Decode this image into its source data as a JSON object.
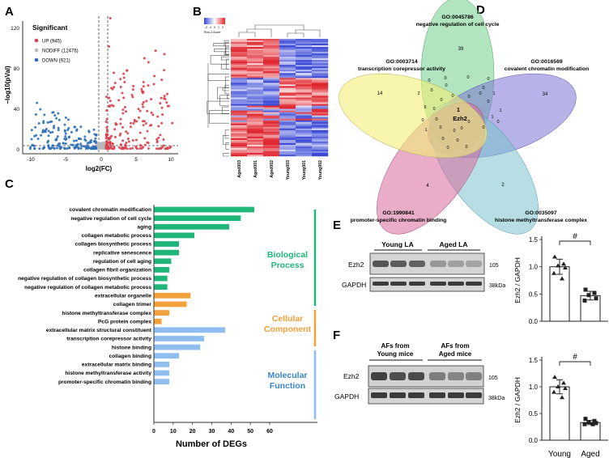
{
  "panel_labels": {
    "a": "A",
    "b": "B",
    "c": "C",
    "d": "D",
    "e": "E",
    "f": "F"
  },
  "colors": {
    "up": "#d9404f",
    "nodiff": "#b8b8b8",
    "down": "#2e6fb7",
    "bio": "#1fb67a",
    "cell": "#f3a13a",
    "mol": "#8fbdf0",
    "venn1": "#f2ee78",
    "venn2": "#6fcf8a",
    "venn3": "#7b74d6",
    "venn4": "#d9699c",
    "venn5": "#7cc3cf"
  },
  "volcano": {
    "legend_title": "Significant",
    "legend": [
      "UP (945)",
      "NODIFF (12476)",
      "DOWN (921)"
    ],
    "xlabel": "log2(FC)",
    "ylabel": "−log10(pVal)",
    "x_ticks": [
      "-10",
      "-5",
      "0",
      "5",
      "10"
    ],
    "y_ticks": [
      "0",
      "40",
      "80",
      "120"
    ]
  },
  "heatmap": {
    "scale_label": "Row Z-Score",
    "scale_ticks": [
      "-2",
      "-1",
      "0",
      "1",
      "2"
    ],
    "columns": [
      "Aged003",
      "Aged001",
      "Aged002",
      "Young003",
      "Young001",
      "Young002"
    ]
  },
  "chart_data": {
    "type": "bar",
    "orientation": "horizontal",
    "xlabel": "Number of DEGs",
    "xlim": [
      0,
      60
    ],
    "x_ticks": [
      "0",
      "10",
      "20",
      "30",
      "40",
      "50",
      "60"
    ],
    "groups": [
      {
        "name_line1": "Biological",
        "name_line2": "Process",
        "color": "#1fb67a",
        "categories": [
          "covalent chromatin modification",
          "negative regulation of cell cycle",
          "aging",
          "collagen metabolic process",
          "collagen biosynthetic process",
          "replicative senescence",
          "regulation of cell aging",
          "collagen fibril organization",
          "negative regulation of collagen biosynthetic process",
          "negative regulation of collagen metabolic process"
        ],
        "values": [
          52,
          45,
          39,
          21,
          13,
          13,
          9,
          8,
          7,
          7
        ]
      },
      {
        "name_line1": "Cellular",
        "name_line2": "Component",
        "color": "#f3a13a",
        "categories": [
          "extracellular organelle",
          "collagen trimer",
          "histone methyltransferase complex",
          "PcG protein complex"
        ],
        "values": [
          19,
          17,
          8,
          4
        ]
      },
      {
        "name_line1": "Molecular",
        "name_line2": "Function",
        "color": "#8fbdf0",
        "categories": [
          "extracellular matrix structural constituent",
          "transcription corepressor activity",
          "histone binding",
          "collagen binding",
          "extracellular matrix binding",
          "histone methyltransferase activity",
          "promoter-specific chromatin binding"
        ],
        "values": [
          37,
          26,
          24,
          13,
          8,
          8,
          8
        ]
      }
    ]
  },
  "venn": {
    "sets": [
      {
        "id": "GO:0045786",
        "name": "negative regulation of cell cycle"
      },
      {
        "id": "GO:0016569",
        "name": "covalent chromatin modification"
      },
      {
        "id": "GO:0035097",
        "name": "histone methyltransferase complex"
      },
      {
        "id": "GO:1990841",
        "name": "promoter-specific chromatin binding"
      },
      {
        "id": "GO:0003714",
        "name": "transcription corepressor activity"
      }
    ],
    "unique_counts": [
      "39",
      "34",
      "2",
      "4",
      "14"
    ],
    "center_count": "1",
    "center_gene": "Ezh2",
    "small_counts": [
      "0",
      "0",
      "0",
      "0",
      "0",
      "0",
      "1",
      "0",
      "2",
      "0",
      "0",
      "0",
      "0",
      "0",
      "1",
      "0",
      "1",
      "0",
      "0",
      "0",
      "1",
      "0",
      "0",
      "0",
      "0",
      "6",
      "0",
      "0",
      "0",
      "0",
      "0"
    ]
  },
  "blot_e": {
    "group1": "Young LA",
    "group2": "Aged LA",
    "band1": "Ezh2",
    "band2": "GAPDH",
    "mw1": "105",
    "mw2": "38kDa",
    "ylabel": "Ezh2 / GAPDH",
    "y_ticks": [
      "0.0",
      "0.5",
      "1.0",
      "1.5"
    ],
    "sig": "#",
    "bars": [
      1.0,
      0.47
    ],
    "points": [
      [
        1.18,
        1.05,
        1.02,
        0.98,
        0.88,
        0.78
      ],
      [
        0.58,
        0.52,
        0.48,
        0.42,
        0.38
      ]
    ]
  },
  "blot_f": {
    "group1_line1": "AFs from",
    "group1_line2": "Young mice",
    "group2_line1": "AFs from",
    "group2_line2": "Aged mice",
    "band1": "Ezh2",
    "band2": "GAPDH",
    "mw1": "105",
    "mw2": "38kDa",
    "ylabel": "Ezh2 / GAPDH",
    "y_ticks": [
      "0.0",
      "0.5",
      "1.0",
      "1.5"
    ],
    "sig": "#",
    "bars": [
      1.0,
      0.33
    ],
    "points": [
      [
        1.18,
        1.07,
        1.0,
        0.97,
        0.9,
        0.8
      ],
      [
        0.4,
        0.36,
        0.34,
        0.32,
        0.3,
        0.3
      ]
    ],
    "x_labels": [
      "Young",
      "Aged"
    ]
  }
}
